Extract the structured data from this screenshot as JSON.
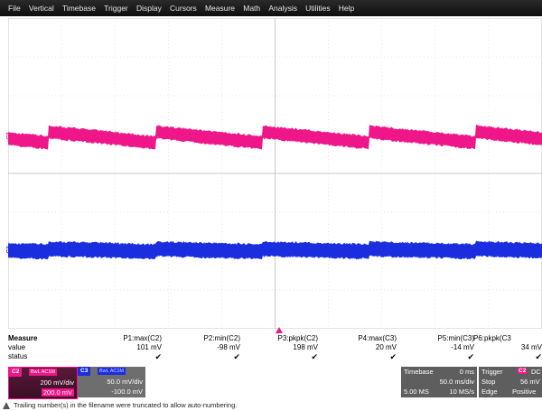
{
  "menu": [
    "File",
    "Vertical",
    "Timebase",
    "Trigger",
    "Display",
    "Cursors",
    "Measure",
    "Math",
    "Analysis",
    "Utilities",
    "Help"
  ],
  "channels": {
    "c2": {
      "label": "C2",
      "color": "#ee1688"
    },
    "c3": {
      "label": "C3",
      "color": "#1a2ee0"
    }
  },
  "measure": {
    "title": "Measure",
    "row_value": "value",
    "row_status": "status",
    "check": "✔",
    "params": [
      {
        "name": "P1:max(C2)",
        "value": "101 mV"
      },
      {
        "name": "P2:min(C2)",
        "value": "-98 mV"
      },
      {
        "name": "P3:pkpk(C2)",
        "value": "198 mV"
      },
      {
        "name": "P4:max(C3)",
        "value": "20 mV"
      },
      {
        "name": "P5:min(C3)",
        "value": "-14 mV"
      },
      {
        "name": "P6:pkpk(C3",
        "value": "34 mV"
      }
    ]
  },
  "c2box": {
    "tag": "C2",
    "sub": "BwL AC1M",
    "vdiv": "200 mV/div",
    "offset": "200.0 mV"
  },
  "c3box": {
    "tag": "C3",
    "sub": "BwL AC1M",
    "vdiv": "50.0 mV/div",
    "offset": "-100.0 mV"
  },
  "timebase": {
    "title": "Timebase",
    "delay": "0 ms",
    "tdiv": "50.0 ms/div",
    "samples": "5.00 MS",
    "rate": "10 MS/s"
  },
  "trigger": {
    "title": "Trigger",
    "chan": "C2",
    "coupling": "DC",
    "mode": "Stop",
    "level": "56 mV",
    "type": "Edge",
    "slope": "Positive"
  },
  "warning": "Trailing number(s) in the filename were truncated to allow auto-numbering."
}
